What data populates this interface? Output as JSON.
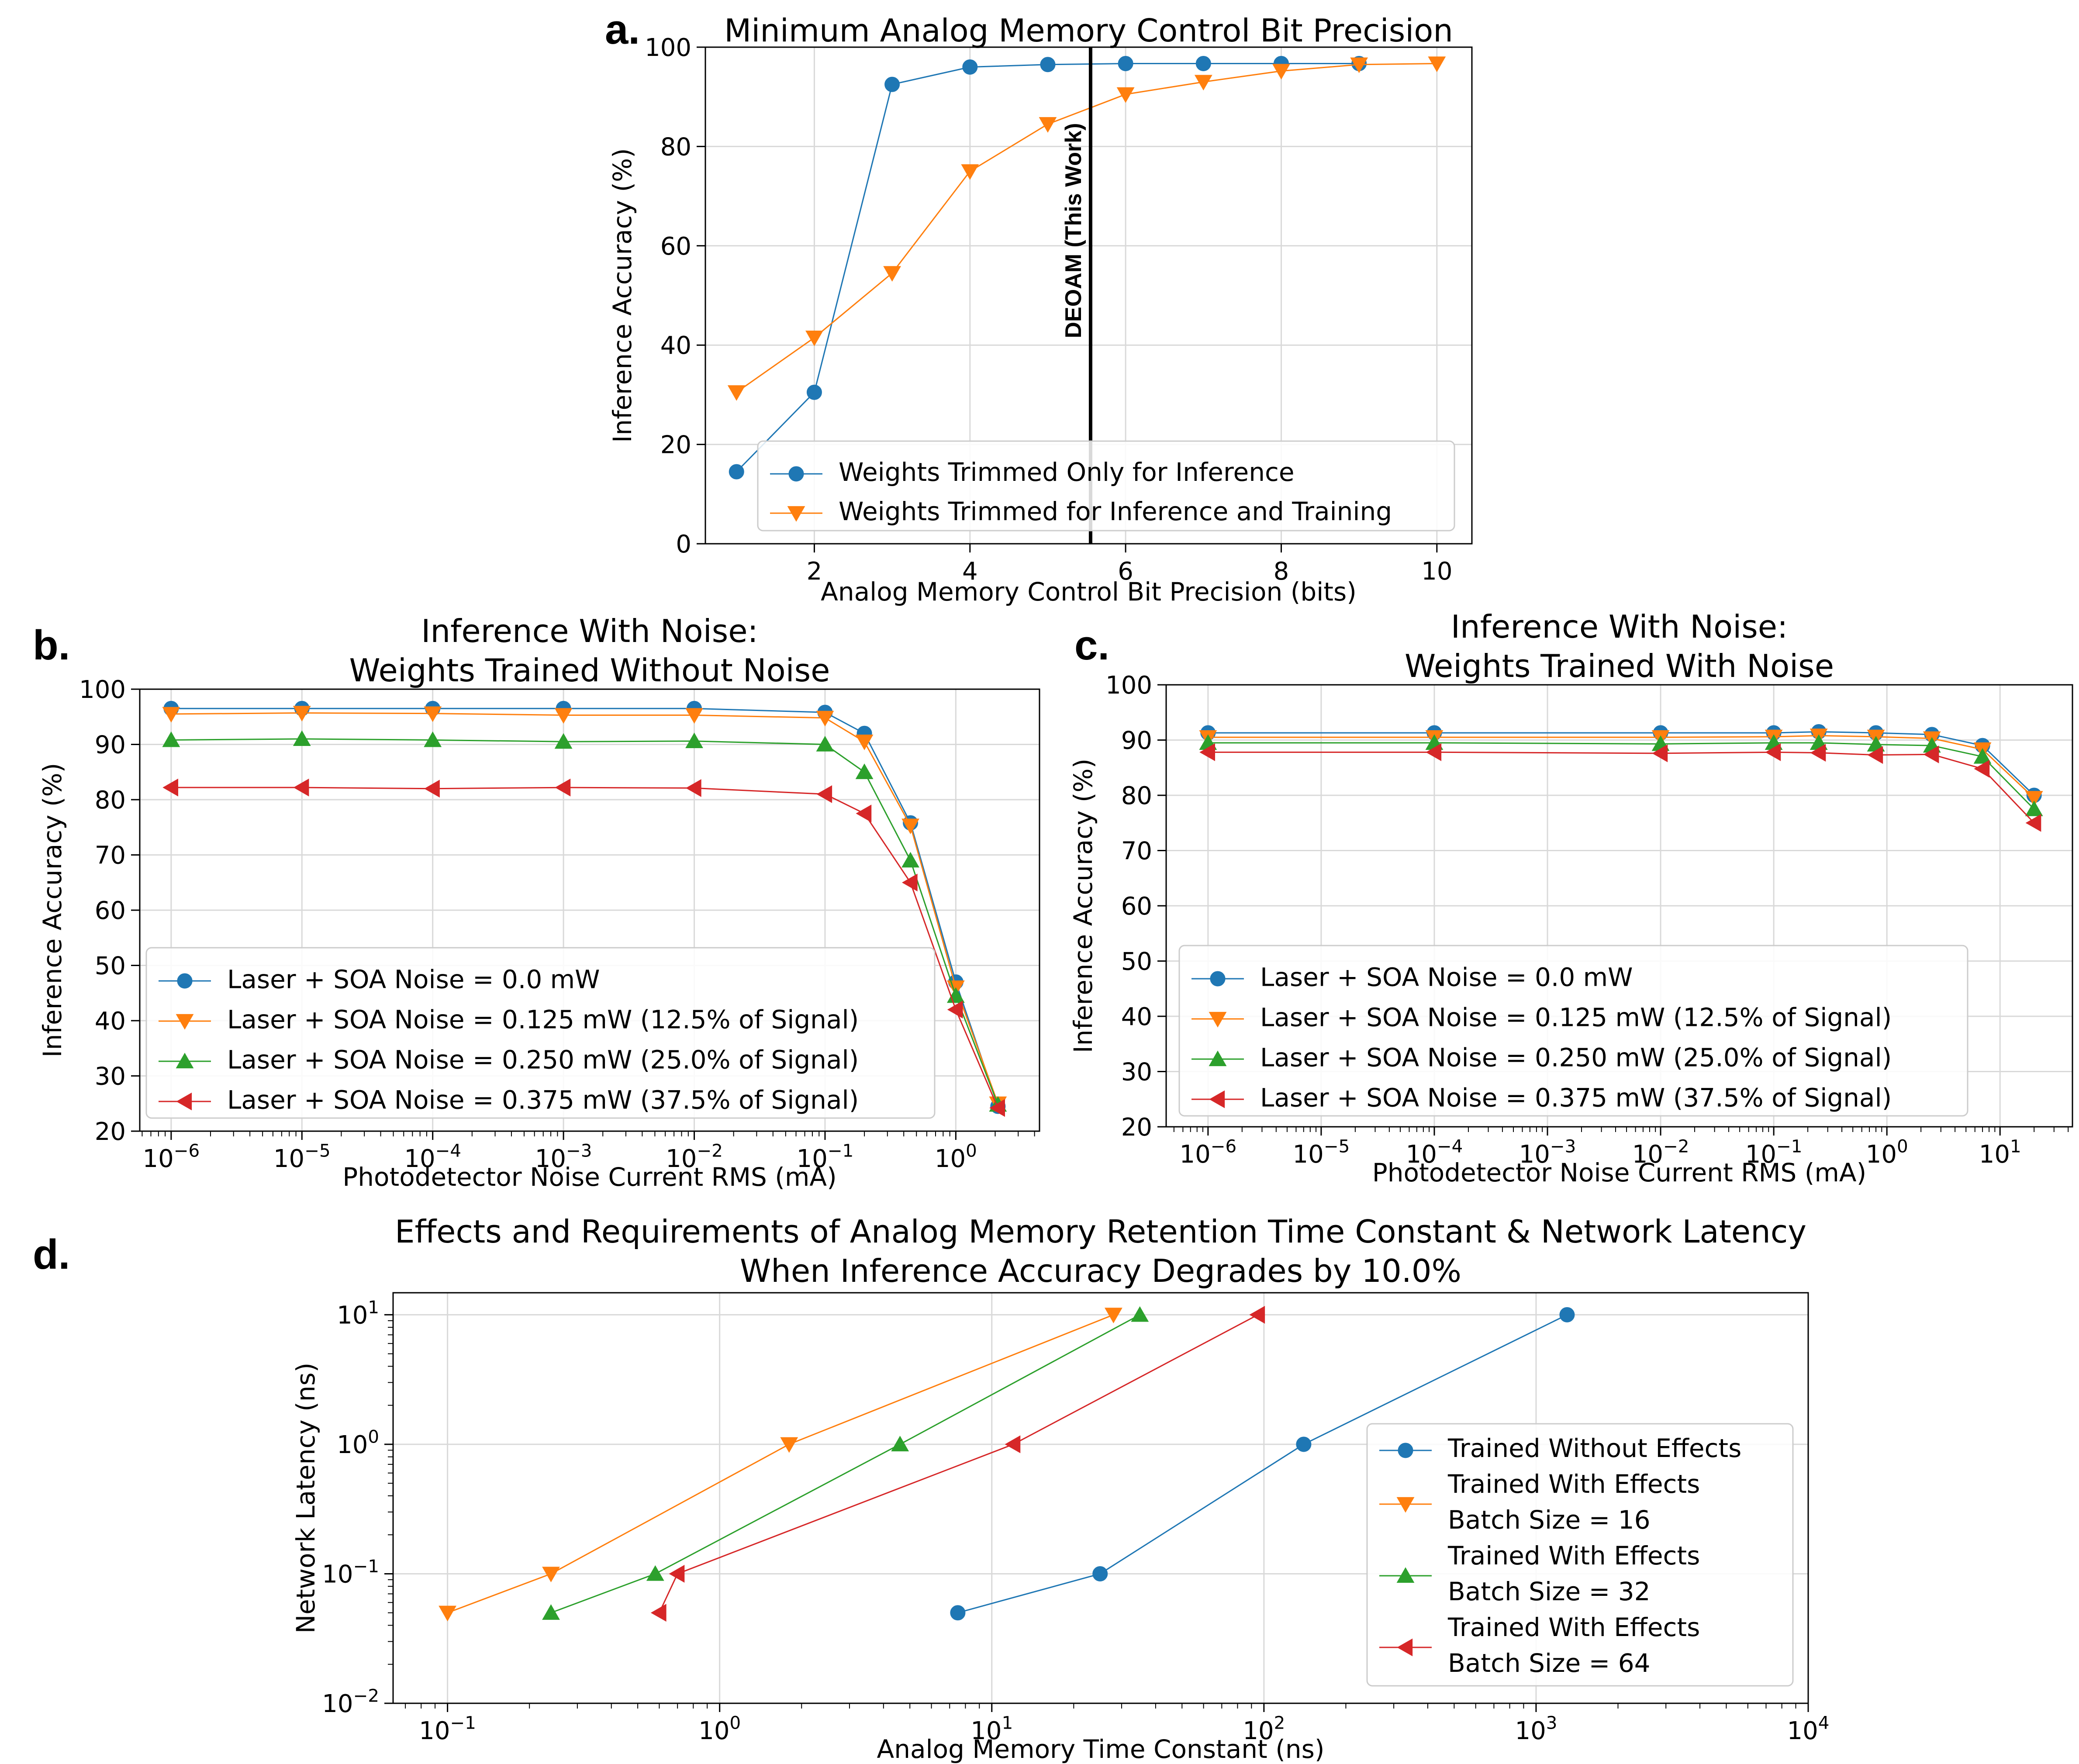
{
  "colors": {
    "blue": "#1f77b4",
    "orange": "#ff7f0e",
    "green": "#2ca02c",
    "red": "#d62728",
    "grid": "#d9d9d9"
  },
  "chart_data": [
    {
      "id": "a",
      "type": "line",
      "panel_label": "a.",
      "title": [
        "Minimum Analog Memory Control Bit Precision"
      ],
      "xlabel": "Analog Memory Control Bit Precision (bits)",
      "ylabel": "Inference Accuracy (%)",
      "xscale": "linear",
      "yscale": "linear",
      "xlim": [
        0.6,
        10.45
      ],
      "ylim": [
        0,
        100
      ],
      "xticks": [
        2,
        4,
        6,
        8,
        10
      ],
      "xtick_labels": [
        "2",
        "4",
        "6",
        "8",
        "10"
      ],
      "yticks": [
        0,
        20,
        40,
        60,
        80,
        100
      ],
      "ytick_labels": [
        "0",
        "20",
        "40",
        "60",
        "80",
        "100"
      ],
      "grid": true,
      "legend_position": "lower-center",
      "vline": {
        "x": 5.55,
        "label": "DEOAM (This Work)"
      },
      "series": [
        {
          "name": "Weights Trimmed Only for Inference",
          "color": "blue",
          "marker": "circle",
          "x": [
            1,
            2,
            3,
            4,
            5,
            6,
            7,
            8,
            9
          ],
          "y": [
            14.5,
            30.5,
            92.5,
            96,
            96.5,
            96.7,
            96.7,
            96.7,
            96.7
          ]
        },
        {
          "name": "Weights Trimmed for Inference and Training",
          "color": "orange",
          "marker": "triangle-down",
          "x": [
            1,
            2,
            3,
            4,
            5,
            6,
            7,
            8,
            9,
            10
          ],
          "y": [
            30.5,
            41.5,
            54.5,
            75,
            84.5,
            90.5,
            93,
            95.2,
            96.5,
            96.7
          ]
        }
      ]
    },
    {
      "id": "b",
      "type": "line",
      "panel_label": "b.",
      "title": [
        "Inference With Noise:",
        "Weights Trained Without Noise"
      ],
      "xlabel": "Photodetector Noise Current RMS (mA)",
      "ylabel": "Inference Accuracy (%)",
      "xscale": "log",
      "yscale": "linear",
      "xlim": [
        -6.24,
        0.64
      ],
      "ylim": [
        20,
        100
      ],
      "xticks": [
        -6,
        -5,
        -4,
        -3,
        -2,
        -1,
        0
      ],
      "xtick_labels": [
        "10^-6",
        "10^-5",
        "10^-4",
        "10^-3",
        "10^-2",
        "10^-1",
        "10^0"
      ],
      "yticks": [
        20,
        30,
        40,
        50,
        60,
        70,
        80,
        90,
        100
      ],
      "ytick_labels": [
        "20",
        "30",
        "40",
        "50",
        "60",
        "70",
        "80",
        "90",
        "100"
      ],
      "grid": true,
      "legend_position": "lower-left",
      "series": [
        {
          "name": "Laser + SOA Noise = 0.0 mW",
          "color": "blue",
          "marker": "circle",
          "x": [
            1e-06,
            1e-05,
            0.0001,
            0.001,
            0.01,
            0.1,
            0.2,
            0.45,
            1,
            2.1
          ],
          "y": [
            96.5,
            96.5,
            96.5,
            96.5,
            96.5,
            95.8,
            92,
            75.8,
            47,
            24.5
          ]
        },
        {
          "name": "Laser + SOA Noise = 0.125 mW (12.5% of Signal)",
          "color": "orange",
          "marker": "triangle-down",
          "x": [
            1e-06,
            1e-05,
            0.0001,
            0.001,
            0.01,
            0.1,
            0.2,
            0.45,
            1,
            2.1
          ],
          "y": [
            95.5,
            95.7,
            95.6,
            95.3,
            95.3,
            94.8,
            90.5,
            75.3,
            46,
            25
          ]
        },
        {
          "name": "Laser + SOA Noise = 0.250 mW (25.0% of Signal)",
          "color": "green",
          "marker": "triangle-up",
          "x": [
            1e-06,
            1e-05,
            0.0001,
            0.001,
            0.01,
            0.1,
            0.2,
            0.45,
            1,
            2.1
          ],
          "y": [
            90.8,
            91,
            90.8,
            90.5,
            90.6,
            90,
            85,
            69,
            44.5,
            24.8
          ]
        },
        {
          "name": "Laser + SOA Noise = 0.375 mW (37.5% of Signal)",
          "color": "red",
          "marker": "triangle-left",
          "x": [
            1e-06,
            1e-05,
            0.0001,
            0.001,
            0.01,
            0.1,
            0.2,
            0.45,
            1,
            2.1
          ],
          "y": [
            82.2,
            82.2,
            82,
            82.2,
            82.1,
            81,
            77.5,
            65,
            42,
            24.2
          ]
        }
      ]
    },
    {
      "id": "c",
      "type": "line",
      "panel_label": "c.",
      "title": [
        "Inference With Noise:",
        "Weights Trained With Noise"
      ],
      "xlabel": "Photodetector Noise Current RMS (mA)",
      "ylabel": "Inference Accuracy (%)",
      "xscale": "log",
      "yscale": "linear",
      "xlim": [
        -6.37,
        1.64
      ],
      "ylim": [
        20,
        100
      ],
      "xticks": [
        -6,
        -5,
        -4,
        -3,
        -2,
        -1,
        0,
        1
      ],
      "xtick_labels": [
        "10^-6",
        "10^-5",
        "10^-4",
        "10^-3",
        "10^-2",
        "10^-1",
        "10^0",
        "10^1"
      ],
      "yticks": [
        20,
        30,
        40,
        50,
        60,
        70,
        80,
        90,
        100
      ],
      "ytick_labels": [
        "20",
        "30",
        "40",
        "50",
        "60",
        "70",
        "80",
        "90",
        "100"
      ],
      "grid": true,
      "legend_position": "lower-left",
      "series": [
        {
          "name": "Laser + SOA Noise = 0.0 mW",
          "color": "blue",
          "marker": "circle",
          "x": [
            1e-06,
            0.0001,
            0.01,
            0.1,
            0.25,
            0.8,
            2.5,
            7,
            20
          ],
          "y": [
            91.3,
            91.3,
            91.3,
            91.3,
            91.5,
            91.3,
            91,
            89,
            80
          ]
        },
        {
          "name": "Laser + SOA Noise = 0.125 mW (12.5% of Signal)",
          "color": "orange",
          "marker": "triangle-down",
          "x": [
            1e-06,
            0.0001,
            0.01,
            0.1,
            0.25,
            0.8,
            2.5,
            7,
            20
          ],
          "y": [
            90.5,
            90.5,
            90.5,
            90.6,
            90.8,
            90.6,
            90.3,
            88.3,
            79.5
          ]
        },
        {
          "name": "Laser + SOA Noise = 0.250 mW (25.0% of Signal)",
          "color": "green",
          "marker": "triangle-up",
          "x": [
            1e-06,
            0.0001,
            0.01,
            0.1,
            0.25,
            0.8,
            2.5,
            7,
            20
          ],
          "y": [
            89.5,
            89.5,
            89.3,
            89.5,
            89.5,
            89.2,
            89,
            87,
            77.5
          ]
        },
        {
          "name": "Laser + SOA Noise = 0.375 mW (37.5% of Signal)",
          "color": "red",
          "marker": "triangle-left",
          "x": [
            1e-06,
            0.0001,
            0.01,
            0.1,
            0.25,
            0.8,
            2.5,
            7,
            20
          ],
          "y": [
            87.8,
            87.8,
            87.6,
            87.8,
            87.7,
            87.3,
            87.4,
            84.8,
            75
          ]
        }
      ]
    },
    {
      "id": "d",
      "type": "line",
      "panel_label": "d.",
      "title": [
        "Effects and Requirements of Analog Memory Retention Time Constant & Network Latency",
        "When Inference Accuracy Degrades by 10.0%"
      ],
      "xlabel": "Analog Memory Time Constant (ns)",
      "ylabel": "Network Latency (ns)",
      "xscale": "log",
      "yscale": "log",
      "xlim": [
        -1.2,
        4.0
      ],
      "ylim": [
        -2,
        1.17
      ],
      "xticks": [
        -1,
        0,
        1,
        2,
        3,
        4
      ],
      "xtick_labels": [
        "10^-1",
        "10^0",
        "10^1",
        "10^2",
        "10^3",
        "10^4"
      ],
      "yticks": [
        -2,
        -1,
        0,
        1
      ],
      "ytick_labels": [
        "10^-2",
        "10^-1",
        "10^0",
        "10^1"
      ],
      "grid": true,
      "legend_position": "lower-right",
      "series": [
        {
          "name": "Trained Without Effects",
          "color": "blue",
          "marker": "circle",
          "x": [
            7.5,
            25,
            140,
            1300
          ],
          "y": [
            0.05,
            0.1,
            1,
            10
          ]
        },
        {
          "name": "Trained With Effects\nBatch Size = 16",
          "color": "orange",
          "marker": "triangle-down",
          "x": [
            0.1,
            0.24,
            1.8,
            28
          ],
          "y": [
            0.05,
            0.1,
            1,
            10
          ]
        },
        {
          "name": "Trained With Effects\nBatch Size = 32",
          "color": "green",
          "marker": "triangle-up",
          "x": [
            0.24,
            0.58,
            4.6,
            35
          ],
          "y": [
            0.05,
            0.1,
            1,
            10
          ]
        },
        {
          "name": "Trained With Effects\nBatch Size = 64",
          "color": "red",
          "marker": "triangle-left",
          "x": [
            0.6,
            0.7,
            12,
            95
          ],
          "y": [
            0.05,
            0.1,
            1,
            10
          ]
        }
      ]
    }
  ]
}
